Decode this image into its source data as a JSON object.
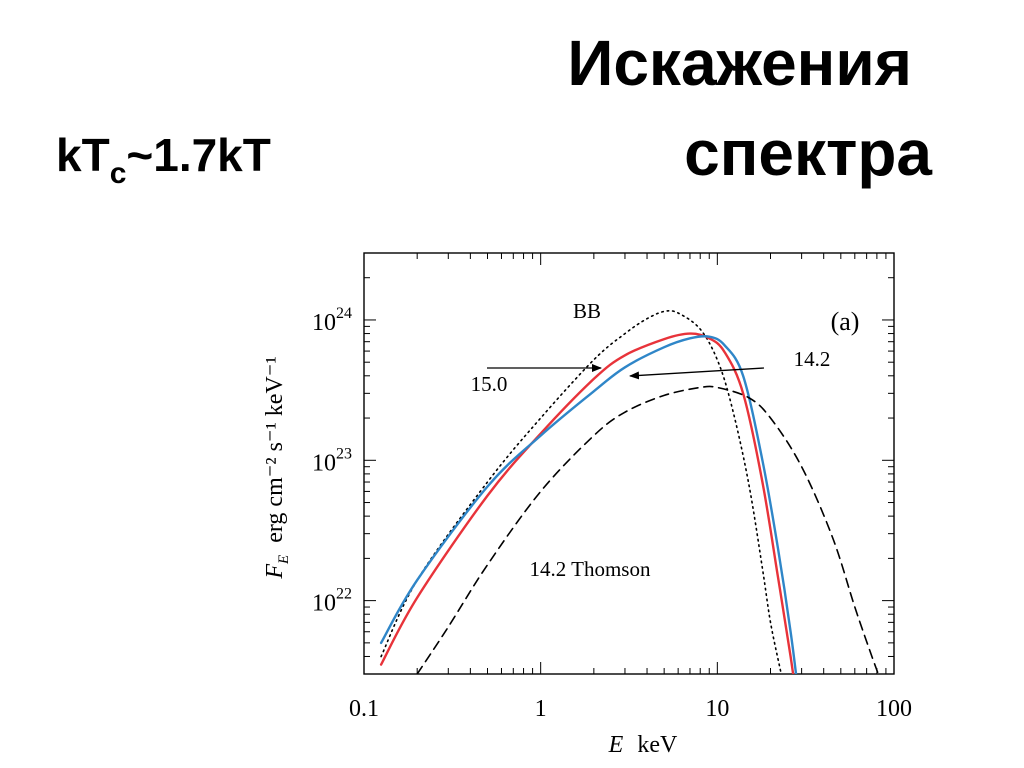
{
  "slide": {
    "title_line1": "Искажения",
    "title_line2": "спектра",
    "formula": {
      "main": "kT",
      "sub": "c",
      "rest": "~1.7kT"
    }
  },
  "chart_data": {
    "type": "line",
    "panel_label": "(a)",
    "xlabel": {
      "var": "E",
      "unit": "keV"
    },
    "ylabel": {
      "var": "F",
      "sub": "E",
      "unit": "erg cm⁻² s⁻¹ keV⁻¹"
    },
    "xscale": "log",
    "yscale": "log",
    "xlim": [
      0.1,
      100
    ],
    "ylim": [
      3e+21,
      3e+24
    ],
    "xticks": [
      {
        "value": 0.1,
        "label": "0.1"
      },
      {
        "value": 1,
        "label": "1"
      },
      {
        "value": 10,
        "label": "10"
      },
      {
        "value": 100,
        "label": "100"
      }
    ],
    "yticks": [
      {
        "value": 1e+22,
        "base": "10",
        "exp": "22"
      },
      {
        "value": 1e+23,
        "base": "10",
        "exp": "23"
      },
      {
        "value": 1e+24,
        "base": "10",
        "exp": "24"
      }
    ],
    "series": [
      {
        "name": "BB",
        "color": "#000000",
        "style": "dotted",
        "points": [
          [
            0.125,
            4e+21
          ],
          [
            0.2,
            1.4e+22
          ],
          [
            0.5,
            7e+22
          ],
          [
            1,
            2e+23
          ],
          [
            2,
            5.2e+23
          ],
          [
            3,
            8e+23
          ],
          [
            4,
            1.02e+24
          ],
          [
            5,
            1.15e+24
          ],
          [
            6,
            1.12e+24
          ],
          [
            8,
            8.6e+23
          ],
          [
            10,
            5.2e+23
          ],
          [
            12,
            2.5e+23
          ],
          [
            15,
            7e+22
          ],
          [
            18,
            1.7e+22
          ],
          [
            20,
            7e+21
          ],
          [
            23,
            3e+21
          ]
        ]
      },
      {
        "name": "15.0",
        "color": "#e8333a",
        "style": "solid",
        "points": [
          [
            0.125,
            3.5e+21
          ],
          [
            0.2,
            1.05e+22
          ],
          [
            0.5,
            5.6e+22
          ],
          [
            1,
            1.55e+23
          ],
          [
            2,
            3.8e+23
          ],
          [
            3,
            5.6e+23
          ],
          [
            5,
            7.3e+23
          ],
          [
            7,
            8e+23
          ],
          [
            9,
            7.4e+23
          ],
          [
            11,
            5.9e+23
          ],
          [
            14,
            3e+23
          ],
          [
            18,
            7e+22
          ],
          [
            22,
            1.5e+22
          ],
          [
            26,
            4e+21
          ],
          [
            28,
            2e+21
          ]
        ]
      },
      {
        "name": "14.2",
        "color": "#2f86c8",
        "style": "solid",
        "points": [
          [
            0.125,
            5e+21
          ],
          [
            0.2,
            1.4e+22
          ],
          [
            0.5,
            6.5e+22
          ],
          [
            1,
            1.5e+23
          ],
          [
            2,
            3.1e+23
          ],
          [
            3,
            4.6e+23
          ],
          [
            5,
            6.4e+23
          ],
          [
            7,
            7.4e+23
          ],
          [
            9,
            7.6e+23
          ],
          [
            11,
            6.6e+23
          ],
          [
            14,
            4e+23
          ],
          [
            18,
            1e+23
          ],
          [
            22,
            2.4e+22
          ],
          [
            26,
            6e+21
          ],
          [
            29,
            2e+21
          ]
        ]
      },
      {
        "name": "14.2 Thomson",
        "color": "#000000",
        "style": "dashed",
        "points": [
          [
            0.2,
            3e+21
          ],
          [
            0.3,
            6.5e+21
          ],
          [
            0.5,
            1.8e+22
          ],
          [
            1,
            6e+22
          ],
          [
            2,
            1.5e+23
          ],
          [
            3,
            2.2e+23
          ],
          [
            5,
            2.9e+23
          ],
          [
            8,
            3.3e+23
          ],
          [
            10,
            3.3e+23
          ],
          [
            15,
            2.8e+23
          ],
          [
            20,
            2e+23
          ],
          [
            30,
            9e+22
          ],
          [
            45,
            2.8e+22
          ],
          [
            60,
            9e+21
          ],
          [
            75,
            4e+21
          ],
          [
            85,
            2.6e+21
          ]
        ]
      }
    ],
    "annotations": [
      {
        "text": "BB"
      },
      {
        "text": "15.0"
      },
      {
        "text": "14.2"
      },
      {
        "text": "14.2 Thomson"
      }
    ]
  }
}
